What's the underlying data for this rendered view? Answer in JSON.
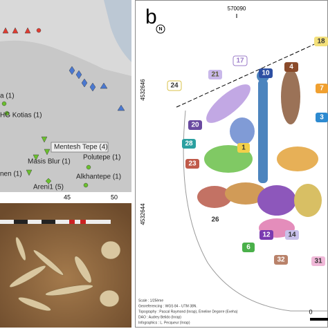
{
  "panel_a": {
    "sites": [
      "a (1)",
      "HG Kotias (1)",
      "Mentesh Tepe (4)",
      "Masis Blur (1)",
      "nen (1)",
      "Areni1 (5)",
      "Polutepe (1)",
      "Alkhantepe (1)"
    ],
    "longitudes": [
      "45",
      "50"
    ]
  },
  "panel_b": {
    "label": "b",
    "easting": "570090",
    "northings": [
      "4532646",
      "4532644"
    ],
    "north": "N",
    "individuals": [
      "17",
      "21",
      "10",
      "4",
      "18",
      "24",
      "7",
      "3",
      "20",
      "1",
      "28",
      "23",
      "26",
      "12",
      "14",
      "6",
      "32",
      "31"
    ],
    "scale_zero": "0",
    "credits": [
      "Scale : 1/25ème",
      "Georeferencing : WGS 84 - UTM 38N.",
      "Topography : Pascal Raymond (Inrap), Émeline Degorre (Eveha)",
      "DAO : Audrey Belido (Inrap)",
      "Infographics : L. Pecqueur (Inrap)"
    ]
  }
}
